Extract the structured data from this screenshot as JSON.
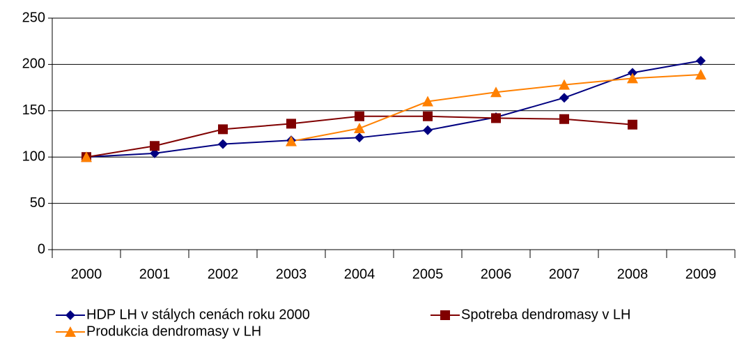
{
  "chart_data": {
    "type": "line",
    "categories": [
      "2000",
      "2001",
      "2002",
      "2003",
      "2004",
      "2005",
      "2006",
      "2007",
      "2008",
      "2009"
    ],
    "series": [
      {
        "name": "HDP LH v stálych cenách roku 2000",
        "color": "#000080",
        "marker": "diamond",
        "values": [
          100,
          104,
          114,
          118,
          121,
          129,
          143,
          164,
          191,
          204
        ]
      },
      {
        "name": "Spotreba dendromasy v LH",
        "color": "#800000",
        "marker": "square",
        "values": [
          100,
          112,
          130,
          136,
          144,
          144,
          142,
          141,
          135,
          null
        ]
      },
      {
        "name": "Produkcia dendromasy v LH",
        "color": "#ff8000",
        "marker": "triangle",
        "values": [
          100,
          null,
          null,
          117,
          131,
          160,
          170,
          178,
          185,
          189
        ]
      }
    ],
    "ylim": [
      0,
      250
    ],
    "yticks": [
      0,
      50,
      100,
      150,
      200,
      250
    ],
    "grid": true,
    "legend": "bottom"
  }
}
